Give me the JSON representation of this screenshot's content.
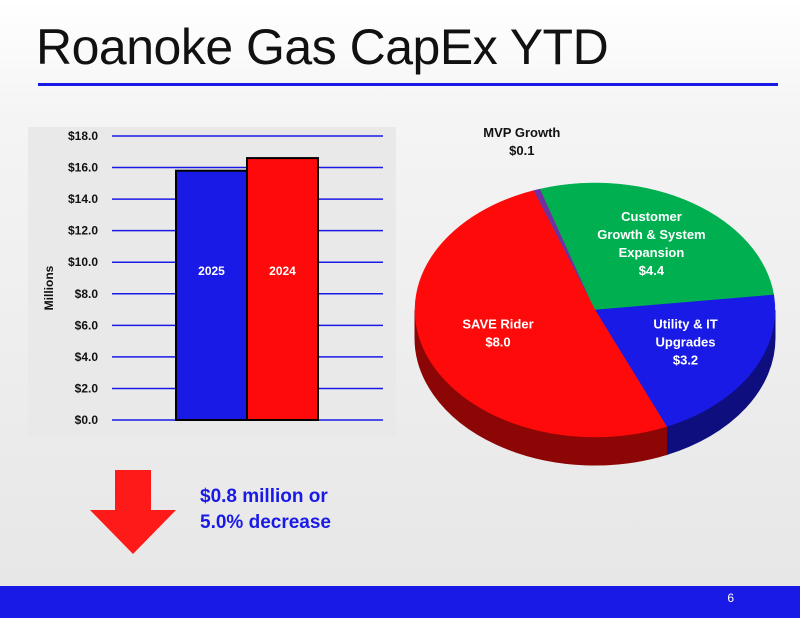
{
  "slide": {
    "title": "Roanoke Gas CapEx YTD",
    "page_number": "6",
    "callout_line1": "$0.8 million or",
    "callout_line2": "5.0% decrease",
    "arrow": "down-arrow-icon",
    "colors": {
      "accent": "#1a1ae6",
      "red": "#ff0a0a",
      "green": "#00b050",
      "purple": "#7030a0"
    }
  },
  "chart_data": [
    {
      "type": "bar",
      "categories": [
        "2025",
        "2024"
      ],
      "values": [
        15.8,
        16.6
      ],
      "colors": [
        "#1a1ae6",
        "#ff0a0a"
      ],
      "ylabel": "Millions",
      "ylim": [
        0,
        18
      ],
      "yticks": [
        "$0.0",
        "$2.0",
        "$4.0",
        "$6.0",
        "$8.0",
        "$10.0",
        "$12.0",
        "$14.0",
        "$16.0",
        "$18.0"
      ],
      "grid": true
    },
    {
      "type": "pie",
      "slices": [
        {
          "label_lines": [
            "MVP Growth",
            "$0.1"
          ],
          "value": 0.1,
          "color": "#7030a0"
        },
        {
          "label_lines": [
            "Customer",
            "Growth & System",
            "Expansion",
            "$4.4"
          ],
          "value": 4.4,
          "color": "#00b050"
        },
        {
          "label_lines": [
            "Utility & IT",
            "Upgrades",
            "$3.2"
          ],
          "value": 3.2,
          "color": "#1a1ae6"
        },
        {
          "label_lines": [
            "SAVE Rider",
            "$8.0"
          ],
          "value": 8.0,
          "color": "#ff0a0a"
        }
      ]
    }
  ]
}
